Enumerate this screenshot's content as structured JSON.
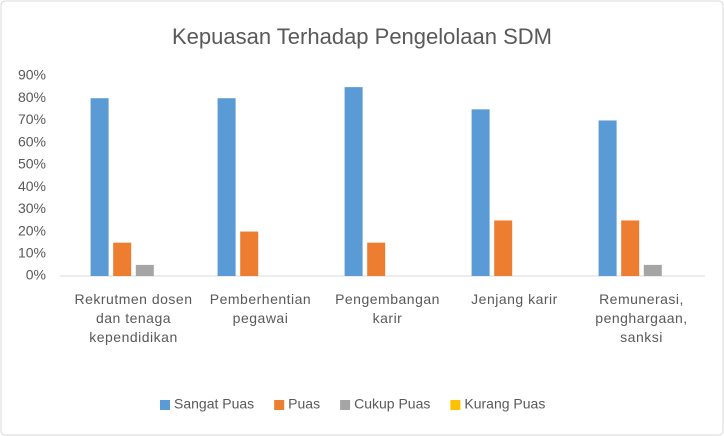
{
  "chart_data": {
    "type": "bar",
    "title": "Kepuasan Terhadap Pengelolaan SDM",
    "categories": [
      "Rekrutmen dosen dan tenaga kependidikan",
      "Pemberhentian pegawai",
      "Pengembangan karir",
      "Jenjang karir",
      "Remunerasi, penghargaan, sanksi"
    ],
    "series": [
      {
        "name": "Sangat Puas",
        "color": "#5b9bd5",
        "values": [
          80,
          80,
          85,
          75,
          70
        ]
      },
      {
        "name": "Puas",
        "color": "#ed7d31",
        "values": [
          15,
          20,
          15,
          25,
          25
        ]
      },
      {
        "name": "Cukup Puas",
        "color": "#a5a5a5",
        "values": [
          5,
          0,
          0,
          0,
          5
        ]
      },
      {
        "name": "Kurang Puas",
        "color": "#ffc000",
        "values": [
          0,
          0,
          0,
          0,
          0
        ]
      }
    ],
    "ylim": [
      0,
      90
    ],
    "yticks": [
      {
        "value": 0,
        "label": "0%"
      },
      {
        "value": 10,
        "label": "10%"
      },
      {
        "value": 20,
        "label": "20%"
      },
      {
        "value": 30,
        "label": "30%"
      },
      {
        "value": 40,
        "label": "40%"
      },
      {
        "value": 50,
        "label": "50%"
      },
      {
        "value": 60,
        "label": "60%"
      },
      {
        "value": 70,
        "label": "70%"
      },
      {
        "value": 80,
        "label": "80%"
      },
      {
        "value": 90,
        "label": "90%"
      }
    ],
    "grid": false,
    "legend": "bottom"
  }
}
